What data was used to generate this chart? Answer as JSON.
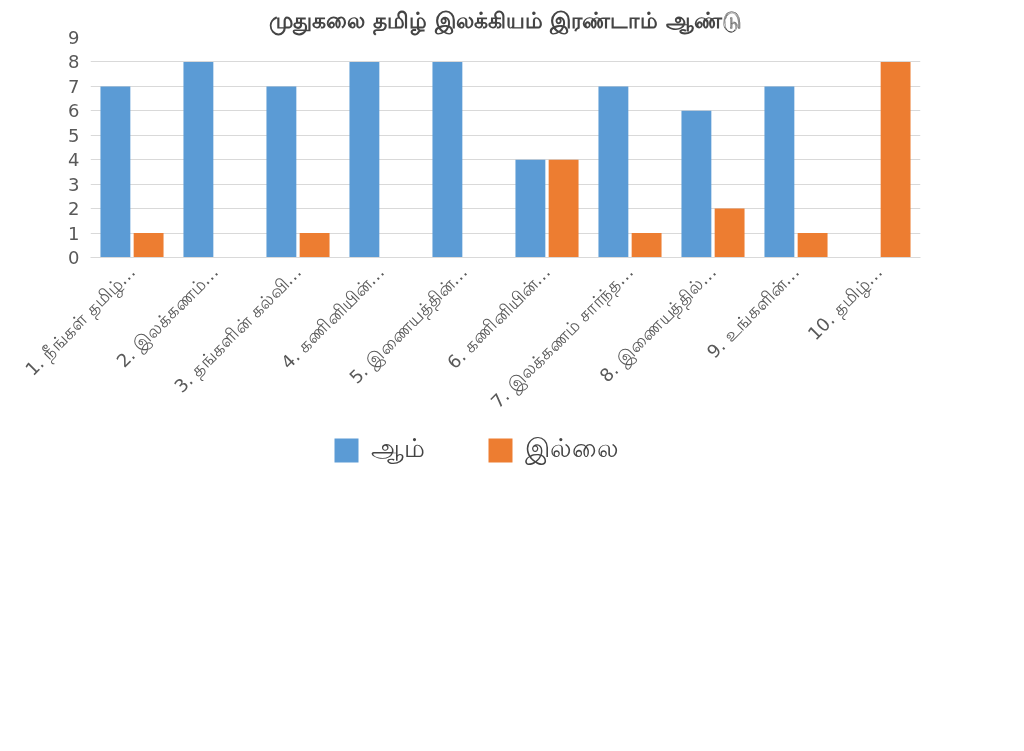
{
  "chart_data": {
    "type": "bar",
    "title": "முதுகலை தமிழ் இலக்கியம் இரண்டாம் ஆண்டு",
    "categories": [
      "1. நீங்கள் தமிழ்…",
      "2. இலக்கணம்…",
      "3. தங்களின் கல்வி…",
      "4. கணினியின்…",
      "5. இணையத்தின்…",
      "6. கணினியின்…",
      "7. இலக்கணம் சார்ந்த…",
      "8. இணையத்தில்…",
      "9. உங்களின்…",
      "10. தமிழ்…"
    ],
    "series": [
      {
        "name": "ஆம்",
        "color": "#5b9bd5",
        "values": [
          7,
          8,
          7,
          8,
          8,
          4,
          7,
          6,
          7,
          0
        ]
      },
      {
        "name": "இல்லை",
        "color": "#ed7d31",
        "values": [
          1,
          0,
          1,
          0,
          0,
          4,
          1,
          2,
          1,
          8
        ]
      }
    ],
    "ylim": [
      0,
      9
    ],
    "yticks": [
      0,
      1,
      2,
      3,
      4,
      5,
      6,
      7,
      8,
      9
    ],
    "grid": "y",
    "legend": "bottom"
  }
}
